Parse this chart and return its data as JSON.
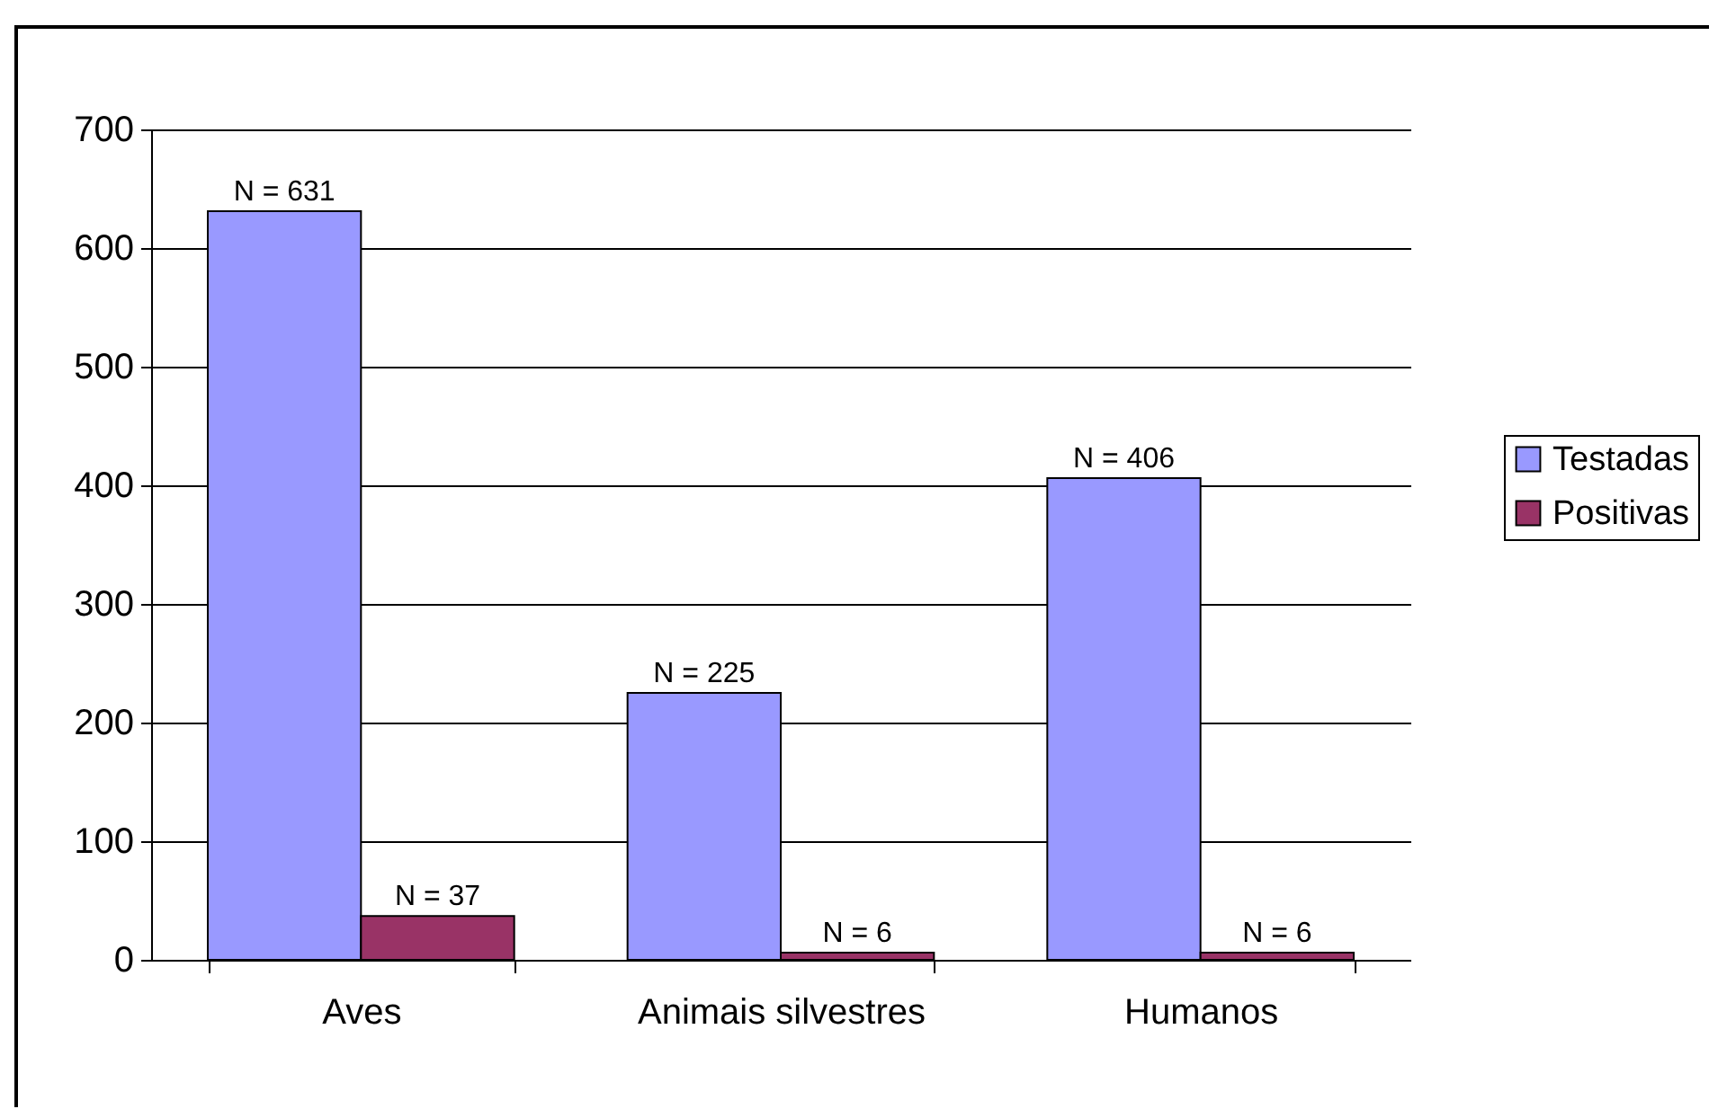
{
  "chart_data": {
    "type": "bar",
    "categories": [
      "Aves",
      "Animais silvestres",
      "Humanos"
    ],
    "series": [
      {
        "name": "Testadas",
        "color": "#9999ff",
        "values": [
          631,
          225,
          406
        ],
        "value_labels": [
          "N = 631",
          "N = 225",
          "N = 406"
        ]
      },
      {
        "name": "Positivas",
        "color": "#993366",
        "values": [
          37,
          6,
          6
        ],
        "value_labels": [
          "N = 37",
          "N = 6",
          "N = 6"
        ]
      }
    ],
    "ylim": [
      0,
      700
    ],
    "yticks": [
      0,
      100,
      200,
      300,
      400,
      500,
      600,
      700
    ],
    "grid": "y",
    "legend": "right"
  }
}
